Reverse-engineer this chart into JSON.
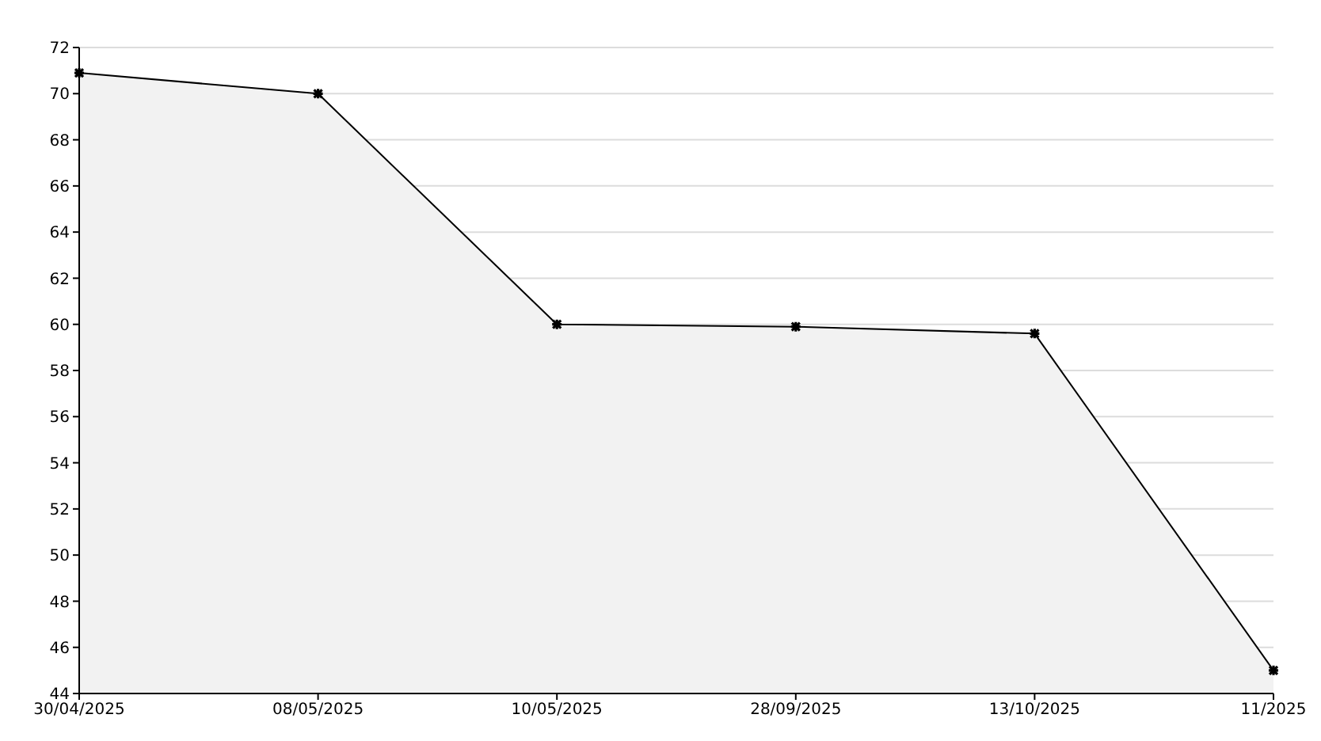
{
  "chart_data": {
    "type": "area",
    "categories": [
      "30/04/2025",
      "08/05/2025",
      "10/05/2025",
      "28/09/2025",
      "13/10/2025",
      "11/2025"
    ],
    "series": [
      {
        "color": "#000000",
        "values": [
          70.9,
          70,
          60,
          59.9,
          59.6,
          45.0
        ]
      }
    ],
    "ylim": [
      44,
      72
    ],
    "yticks": [
      44,
      46,
      48,
      50,
      52,
      54,
      56,
      58,
      60,
      62,
      64,
      66,
      68,
      70,
      72
    ],
    "grid": "y",
    "marker": "cross",
    "line_style": "solid"
  }
}
